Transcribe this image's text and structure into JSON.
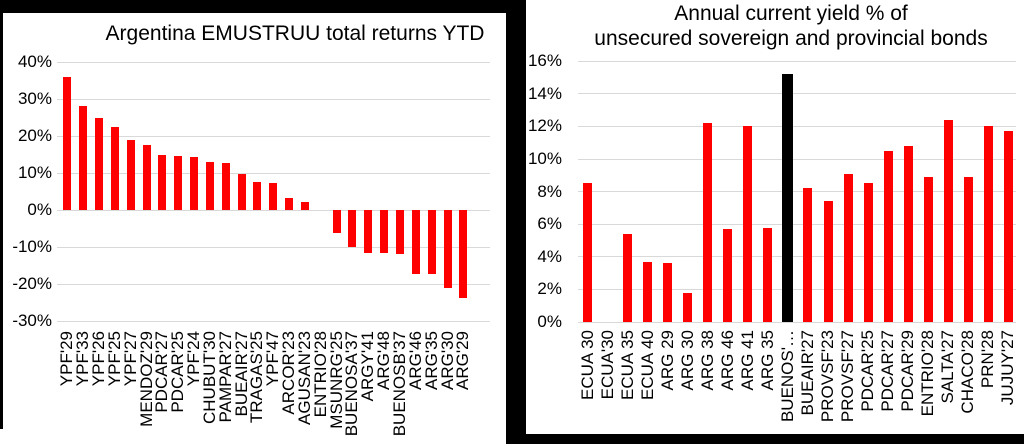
{
  "figure": {
    "background_color": "#ffffff",
    "border_color": "#000000",
    "bar_color": "#fe0000",
    "gridline_color": "#d9d9d9",
    "text_color": "#000000"
  },
  "chart_data": [
    {
      "type": "bar",
      "title": "Argentina EMUSTRUU total returns YTD",
      "xlabel": "",
      "ylabel": "",
      "ylim": [
        -30,
        40
      ],
      "grid": true,
      "legend": "none",
      "ytick_labels": [
        "40%",
        "30%",
        "20%",
        "10%",
        "0%",
        "-10%",
        "-20%",
        "-30%"
      ],
      "ytick_values": [
        40,
        30,
        20,
        10,
        0,
        -10,
        -20,
        -30
      ],
      "bar_color": "#fe0000",
      "gridline_color": "#d9d9d9",
      "categories": [
        "YPF'29",
        "YPF'33",
        "YPF'26",
        "YPF'25",
        "YPF'27",
        "MENDOZ'29",
        "PDCAR'27",
        "PDCAR'25",
        "YPF'24",
        "CHUBUT'30",
        "PAMPAR'27",
        "BUEAIR'27",
        "TRAGAS'25",
        "YPF'47",
        "ARCOR'23",
        "AGUSAN'23",
        "ENTRIO'28",
        "MSUNRG'25",
        "BUENOSA'37",
        "ARGY'41",
        "ARG'48",
        "BUENOSB'37",
        "ARG'46",
        "ARG'35",
        "ARG'30",
        "ARG'29"
      ],
      "values": [
        36,
        28,
        24.8,
        22.5,
        19,
        17.6,
        15,
        14.7,
        14.4,
        13,
        12.7,
        9.8,
        7.6,
        7.4,
        3.2,
        2.3,
        0,
        -6.2,
        -9.9,
        -11.6,
        -11.6,
        -12,
        -17.3,
        -17.4,
        -21,
        -23.8
      ]
    },
    {
      "type": "bar",
      "title_line1": "Annual current yield % of",
      "title_line2": "unsecured sovereign and provincial bonds",
      "xlabel": "",
      "ylabel": "",
      "ylim": [
        0,
        16
      ],
      "grid": true,
      "legend": "none",
      "ytick_labels": [
        "16%",
        "14%",
        "12%",
        "10%",
        "8%",
        "6%",
        "4%",
        "2%",
        "0%"
      ],
      "ytick_values": [
        16,
        14,
        12,
        10,
        8,
        6,
        4,
        2,
        0
      ],
      "bar_color": "#fe0000",
      "highlight_index": 10,
      "highlight_color": "#000000",
      "gridline_color": "#d9d9d9",
      "categories": [
        "ECUA 30",
        "ECUA'30",
        "ECUA 35",
        "ECUA 40",
        "ARG 29",
        "ARG 30",
        "ARG 38",
        "ARG 46",
        "ARG 41",
        "ARG 35",
        "BUENOS'…",
        "BUEAIR'27",
        "PROVSF'23",
        "PROVSF'27",
        "PDCAR'25",
        "PDCAR'27",
        "PDCAR'29",
        "ENTRIO'28",
        "SALTA'27",
        "CHACO'28",
        "PRN'28",
        "JUJUY'27"
      ],
      "values": [
        8.5,
        0,
        5.4,
        3.7,
        3.6,
        1.8,
        12.2,
        5.7,
        12,
        5.8,
        15.2,
        8.2,
        7.4,
        9.1,
        8.5,
        10.5,
        10.8,
        8.9,
        12.4,
        8.9,
        12,
        11.7
      ]
    }
  ]
}
